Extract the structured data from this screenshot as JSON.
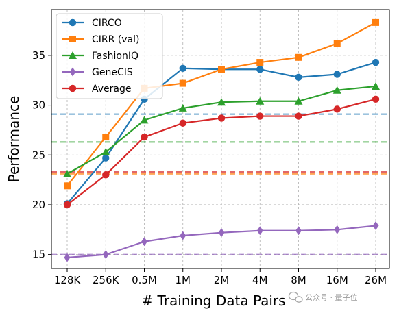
{
  "chart_data": {
    "type": "line",
    "x_categories": [
      "128K",
      "256K",
      "0.5M",
      "1M",
      "2M",
      "4M",
      "8M",
      "16M",
      "26M"
    ],
    "xlabel": "# Training Data Pairs",
    "ylabel": "Performance",
    "ylim": [
      13.6,
      39.6
    ],
    "yticks": [
      15,
      20,
      25,
      30,
      35
    ],
    "grid": true,
    "legend_position": "top-left",
    "series": [
      {
        "name": "CIRCO",
        "color": "#1f77b4",
        "marker": "circle",
        "values": [
          20.1,
          24.7,
          30.6,
          33.7,
          33.6,
          33.6,
          32.8,
          33.1,
          34.3
        ],
        "baseline": 29.1
      },
      {
        "name": "CIRR (val)",
        "color": "#ff7f0e",
        "marker": "square",
        "values": [
          21.9,
          26.8,
          31.7,
          32.2,
          33.6,
          34.3,
          34.8,
          36.2,
          38.3
        ],
        "baseline": 23.1
      },
      {
        "name": "FashionIQ",
        "color": "#2ca02c",
        "marker": "triangle",
        "values": [
          23.1,
          25.3,
          28.5,
          29.7,
          30.3,
          30.4,
          30.4,
          31.5,
          31.9
        ],
        "baseline": 26.3
      },
      {
        "name": "GeneCIS",
        "color": "#9467bd",
        "marker": "diamond",
        "values": [
          14.7,
          15.0,
          16.3,
          16.9,
          17.2,
          17.4,
          17.4,
          17.5,
          17.9
        ],
        "baseline": 15.0
      },
      {
        "name": "Average",
        "color": "#d62728",
        "marker": "circle",
        "values": [
          20.0,
          23.0,
          26.8,
          28.2,
          28.7,
          28.9,
          28.9,
          29.6,
          30.6
        ],
        "baseline": 23.3
      }
    ]
  },
  "watermark": {
    "text": "公众号 · 量子位",
    "icon": "wechat-logo-icon"
  }
}
